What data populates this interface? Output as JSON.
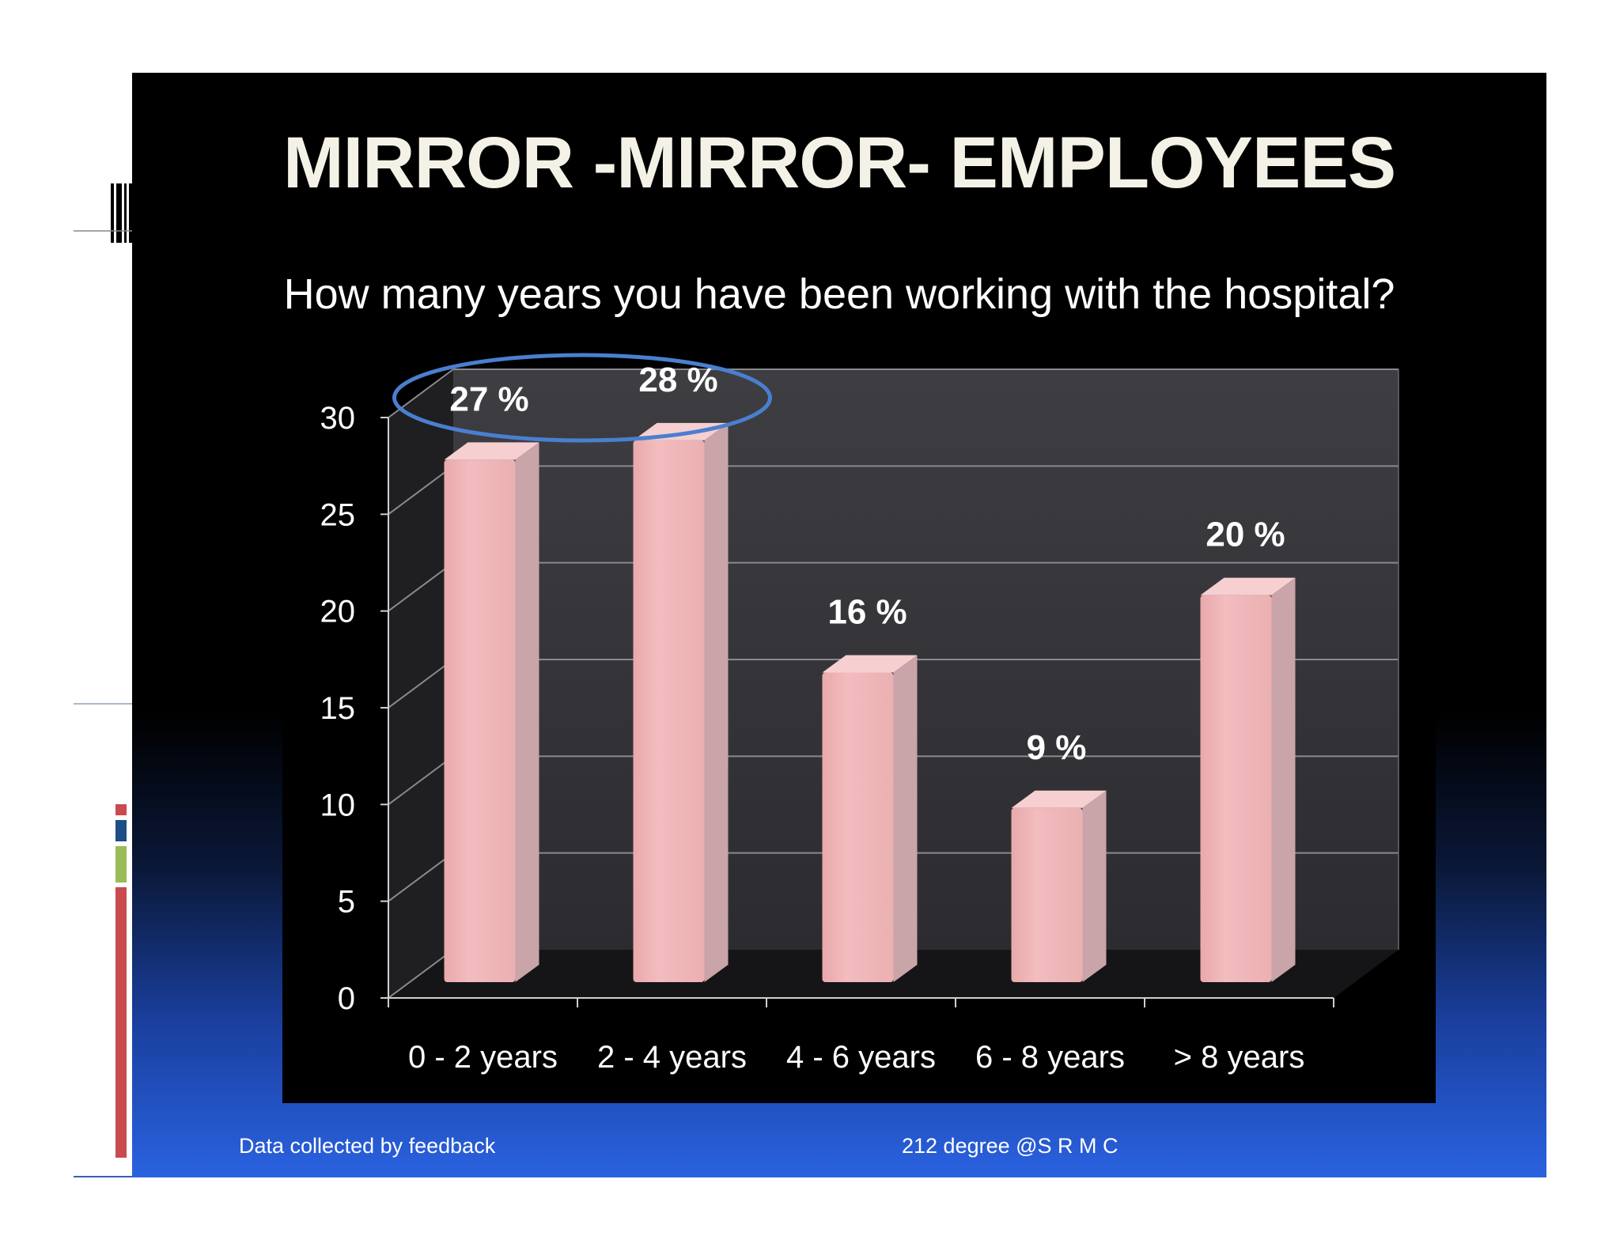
{
  "slide": {
    "title": "MIRROR -MIRROR- EMPLOYEES",
    "subtitle": "How many years you have been working with the hospital?",
    "footer_left": "Data collected by feedback",
    "footer_center": "212 degree @S R M C"
  },
  "colors": {
    "bar": "#f0b3b5",
    "bar_side": "#c9a4a8",
    "bar_top": "#f6cfd1",
    "highlight_ellipse": "#4a7fd0",
    "plot_back": "#3d3d40",
    "accent_red": "#c94a4f",
    "accent_navy": "#1f4e86",
    "accent_green": "#9bbb59"
  },
  "chart_data": {
    "type": "bar",
    "categories": [
      "0 - 2 years",
      "2 - 4 years",
      "4 - 6 years",
      "6 - 8 years",
      "> 8 years"
    ],
    "values": [
      27,
      28,
      16,
      9,
      20
    ],
    "data_labels": [
      "27 %",
      "28 %",
      "16 %",
      "9 %",
      "20 %"
    ],
    "yticks": [
      "0",
      "5",
      "10",
      "15",
      "20",
      "25",
      "30"
    ],
    "ylim": [
      0,
      30
    ],
    "grid": true,
    "style": "3d",
    "highlighted_categories": [
      "0 - 2 years",
      "2 - 4 years"
    ]
  }
}
